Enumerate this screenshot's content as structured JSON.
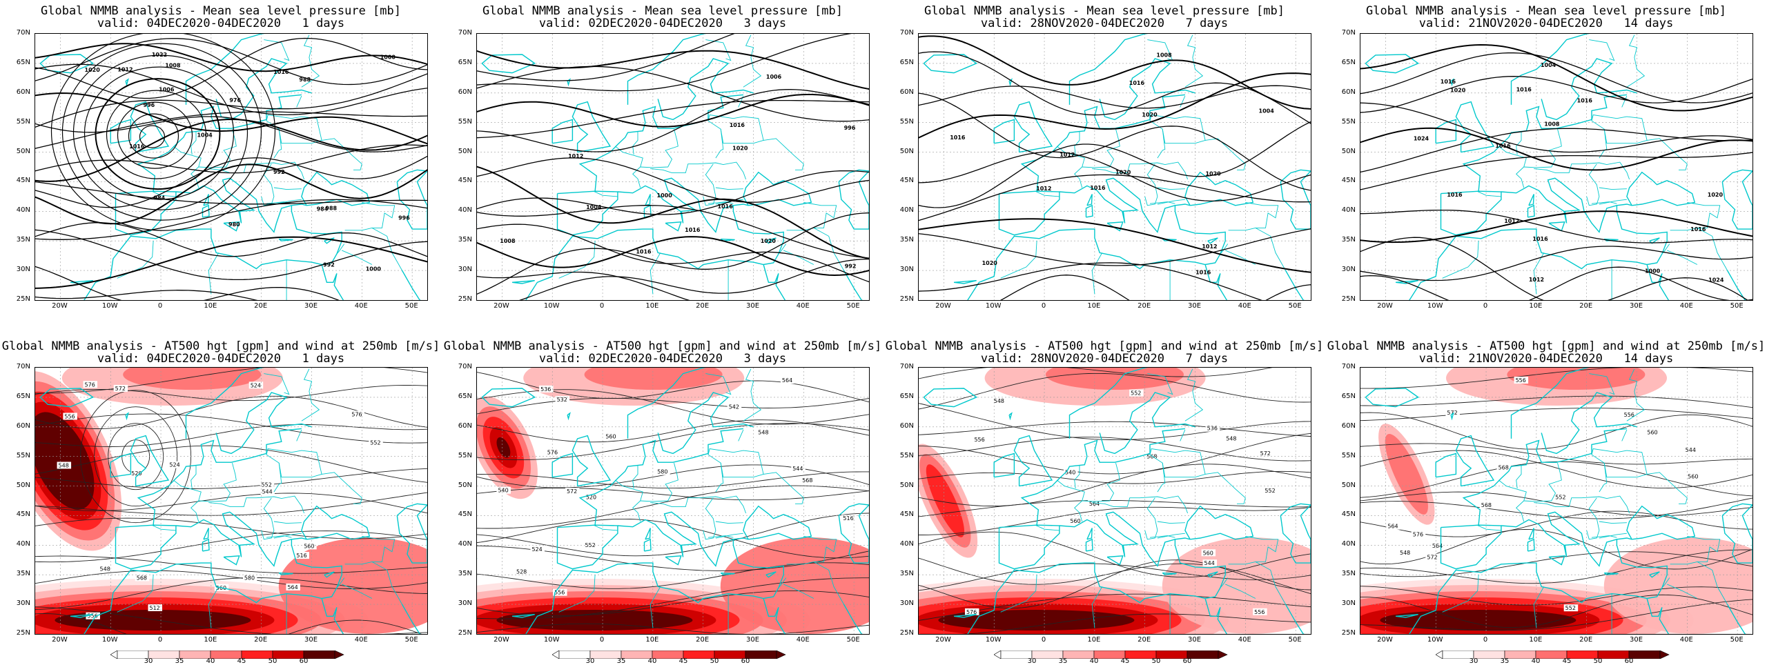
{
  "colors": {
    "coast": "#00c8cc",
    "contour": "#000000",
    "grid": "#9a9a9a",
    "wind_levels": [
      "#ffe2e2",
      "#ffb4b4",
      "#ff7070",
      "#ff2020",
      "#cc0000",
      "#5a0000"
    ]
  },
  "lat_labels": [
    "70N",
    "65N",
    "60N",
    "55N",
    "50N",
    "45N",
    "40N",
    "35N",
    "30N",
    "25N"
  ],
  "lon_labels": [
    "20W",
    "10W",
    "0",
    "10E",
    "20E",
    "30E",
    "40E",
    "50E"
  ],
  "colorbar": {
    "labels": [
      "30",
      "35",
      "40",
      "45",
      "50",
      "60"
    ]
  },
  "top_row": [
    {
      "title": "Global NMMB analysis - Mean sea level pressure [mb]",
      "valid": "valid: 04DEC2020-04DEC2020   1 days",
      "labels": [
        "1000",
        "996",
        "992",
        "988",
        "984",
        "980",
        "976",
        "984",
        "988",
        "992",
        "996",
        "1000",
        "1004",
        "1008",
        "1006",
        "1012",
        "1020",
        "1016",
        "1022",
        "1016"
      ]
    },
    {
      "title": "Global NMMB analysis - Mean sea level pressure [mb]",
      "valid": "valid: 02DEC2020-04DEC2020   3 days",
      "labels": [
        "1016",
        "1020",
        "992",
        "996",
        "1000",
        "1004",
        "1006",
        "1008",
        "1016",
        "1012",
        "1016",
        "1020",
        "1016"
      ]
    },
    {
      "title": "Global NMMB analysis - Mean sea level pressure [mb]",
      "valid": "valid: 28NOV2020-04DEC2020   7 days",
      "labels": [
        "1004",
        "1008",
        "1016",
        "1012",
        "1012",
        "1020",
        "1020",
        "1020",
        "1020",
        "1016",
        "1016",
        "1012",
        "1016"
      ]
    },
    {
      "title": "Global NMMB analysis - Mean sea level pressure [mb]",
      "valid": "valid: 21NOV2020-04DEC2020   14 days",
      "labels": [
        "1000",
        "1004",
        "1008",
        "1012",
        "1012",
        "1016",
        "1016",
        "1024",
        "1020",
        "1016",
        "1016",
        "1016",
        "1024",
        "1020",
        "1016",
        "1016"
      ]
    }
  ],
  "bottom_row": [
    {
      "title": "Global NMMB analysis - AT500 hgt [gpm] and wind at 250mb [m/s]",
      "valid": "valid: 04DEC2020-04DEC2020   1 days",
      "labels": [
        "524",
        "524",
        "520",
        "516",
        "512",
        "548",
        "552",
        "556",
        "560",
        "544",
        "548",
        "552",
        "556",
        "560",
        "564",
        "568",
        "572",
        "576",
        "580",
        "576"
      ]
    },
    {
      "title": "Global NMMB analysis - AT500 hgt [gpm] and wind at 250mb [m/s]",
      "valid": "valid: 02DEC2020-04DEC2020   3 days",
      "labels": [
        "542",
        "544",
        "516",
        "520",
        "524",
        "528",
        "532",
        "536",
        "540",
        "548",
        "552",
        "556",
        "560",
        "564",
        "568",
        "572",
        "576",
        "580"
      ]
    },
    {
      "title": "Global NMMB analysis - AT500 hgt [gpm] and wind at 250mb [m/s]",
      "valid": "valid: 28NOV2020-04DEC2020   7 days",
      "labels": [
        "536",
        "540",
        "544",
        "548",
        "552",
        "556",
        "560",
        "548",
        "552",
        "556",
        "560",
        "564",
        "568",
        "572",
        "576"
      ]
    },
    {
      "title": "Global NMMB analysis - AT500 hgt [gpm] and wind at 250mb [m/s]",
      "valid": "valid: 21NOV2020-04DEC2020   14 days",
      "labels": [
        "544",
        "548",
        "552",
        "556",
        "560",
        "564",
        "568",
        "572",
        "576",
        "548",
        "552",
        "556",
        "560",
        "564",
        "568",
        "572"
      ]
    }
  ]
}
